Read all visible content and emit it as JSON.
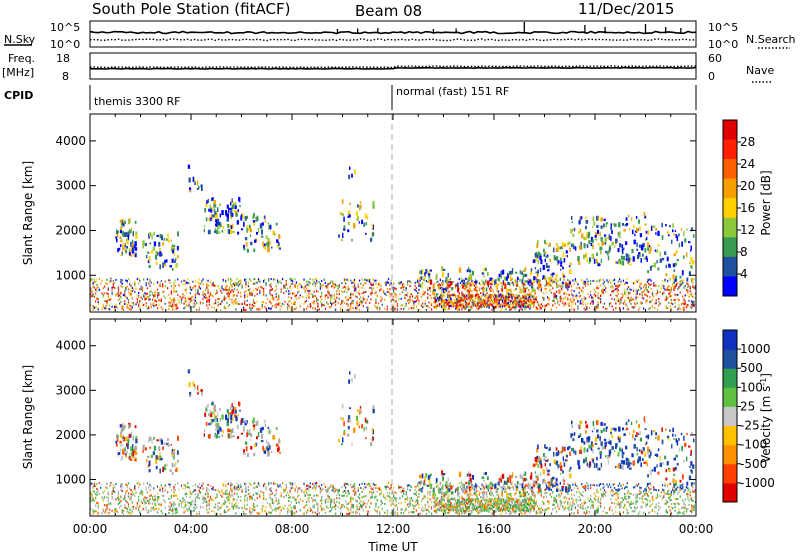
{
  "header": {
    "station": "South Pole Station (fitACF)",
    "beam": "Beam 08",
    "date": "11/Dec/2015"
  },
  "top_strip": {
    "nsky_label": "N.Sky",
    "nsky_ticks": [
      "10^5",
      "10^0"
    ],
    "nsearch_label": "N.Search",
    "nsearch_ticks": [
      "10^5",
      "10^0"
    ],
    "freq_label": "Freq.",
    "freq_unit": "[MHz]",
    "freq_ticks": [
      "18",
      "8"
    ],
    "nave_label": "Nave",
    "nave_ticks": [
      "60",
      "0"
    ],
    "cpid_label": "CPID",
    "cpid_segments": [
      {
        "label": "themis 3300 RF",
        "start_hour": 0,
        "end_hour": 12
      },
      {
        "label": "normal (fast) 151 RF",
        "start_hour": 12,
        "end_hour": 24
      }
    ]
  },
  "colors": {
    "ground_scatter": "#aaaaaa",
    "power_scale": [
      "#0000ff",
      "#2050a0",
      "#3a9a50",
      "#8cc83a",
      "#ffd000",
      "#f5a000",
      "#ff6000",
      "#ff2000",
      "#e00000"
    ],
    "velocity_scale": [
      "#e00000",
      "#ff4000",
      "#ff9000",
      "#ffc000",
      "#c8c8c8",
      "#60c040",
      "#30a050",
      "#2050a0",
      "#1030c0"
    ]
  },
  "chart_data": [
    {
      "type": "heatmap",
      "name": "power-panel",
      "xlabel": "",
      "ylabel": "Slant Range [km]",
      "xlim": [
        0,
        24
      ],
      "ylim": [
        180,
        4600
      ],
      "y_ticks": [
        "1000",
        "2000",
        "3000",
        "4000"
      ],
      "colorbar": {
        "label": "Power [dB]",
        "range": [
          0,
          32
        ],
        "ticks": [
          "4",
          "8",
          "12",
          "16",
          "20",
          "24",
          "28"
        ]
      }
    },
    {
      "type": "heatmap",
      "name": "velocity-panel",
      "xlabel": "Time UT",
      "ylabel": "Slant Range [km]",
      "xlim": [
        0,
        24
      ],
      "ylim": [
        180,
        4600
      ],
      "x_ticks": [
        "00:00",
        "04:00",
        "08:00",
        "12:00",
        "16:00",
        "20:00",
        "00:00"
      ],
      "y_ticks": [
        "1000",
        "2000",
        "3000",
        "4000"
      ],
      "colorbar": {
        "label": "Velocity [m s",
        "label_sup": "-1",
        "label_close": "]",
        "ticks": [
          "1000",
          "500",
          "100",
          "25",
          "-25",
          "-100",
          "-500",
          "-1000"
        ]
      }
    }
  ]
}
